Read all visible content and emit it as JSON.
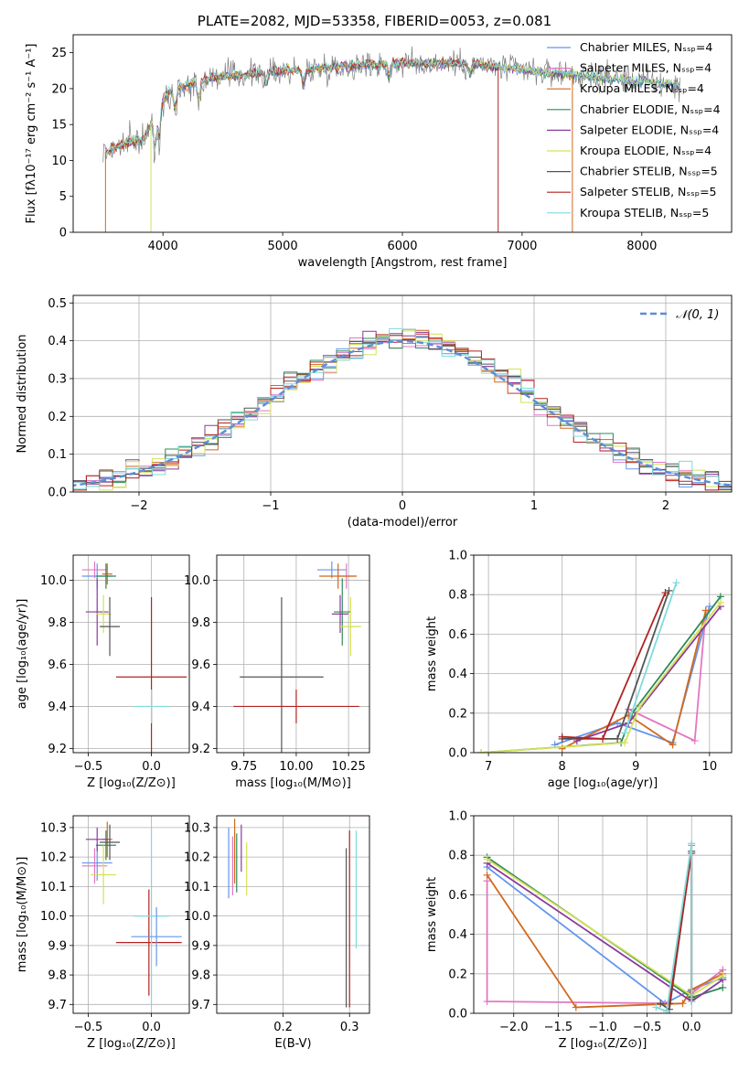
{
  "chart_data": [
    {
      "id": "spectrum",
      "type": "line",
      "title": "PLATE=2082, MJD=53358, FIBERID=0053, z=0.081",
      "xlabel": "wavelength [Angstrom, rest frame]",
      "ylabel": "Flux [fλ10⁻¹⁷ erg cm⁻² s⁻¹ A⁻¹]",
      "xlim": [
        3250,
        8750
      ],
      "ylim": [
        0,
        27.5
      ],
      "xticks": [
        4000,
        5000,
        6000,
        7000,
        8000
      ],
      "yticks": [
        0,
        5,
        10,
        15,
        20,
        25
      ],
      "grid": false,
      "legend_position": "right",
      "legend": [
        "Chabrier MILES, Nₛₛₚ=4",
        "Salpeter MILES, Nₛₛₚ=4",
        "Kroupa MILES, Nₛₛₚ=4",
        "Chabrier ELODIE, Nₛₛₚ=4",
        "Salpeter ELODIE, Nₛₛₚ=4",
        "Kroupa ELODIE, Nₛₛₚ=4",
        "Chabrier STELIB, Nₛₛₚ=5",
        "Salpeter STELIB, Nₛₛₚ=5",
        "Kroupa STELIB, Nₛₛₚ=5"
      ],
      "continuum": [
        [
          3500,
          11
        ],
        [
          3700,
          12.5
        ],
        [
          3850,
          13
        ],
        [
          3950,
          17.5
        ],
        [
          4050,
          19.5
        ],
        [
          4200,
          20.5
        ],
        [
          4400,
          21.5
        ],
        [
          4700,
          22
        ],
        [
          5000,
          22.5
        ],
        [
          5300,
          22.8
        ],
        [
          5600,
          23.2
        ],
        [
          5900,
          23.5
        ],
        [
          6200,
          23.5
        ],
        [
          6500,
          23.5
        ],
        [
          6800,
          23
        ],
        [
          7100,
          22.5
        ],
        [
          7400,
          22
        ],
        [
          7700,
          21.5
        ],
        [
          8000,
          21
        ],
        [
          8300,
          20.5
        ]
      ]
    },
    {
      "id": "residuals",
      "type": "histogram",
      "xlabel": "(data-model)/error",
      "ylabel": "Normed distribution",
      "xlim": [
        -2.5,
        2.5
      ],
      "ylim": [
        0,
        0.52
      ],
      "xticks": [
        -2,
        -1,
        0,
        1,
        2
      ],
      "yticks": [
        0.0,
        0.1,
        0.2,
        0.3,
        0.4,
        0.5
      ],
      "grid": true,
      "legend_position": "top-right",
      "legend": [
        "𝒩(0, 1)"
      ],
      "bin_width": 0.1,
      "bin_start": -2.5,
      "reference_mean": 0,
      "reference_sigma": 1
    },
    {
      "id": "age-vs-z",
      "type": "errorbar",
      "xlabel": "Z [log₁₀(Z/Z⊙)]",
      "ylabel": "age  [log₁₀(age/yr)]",
      "xlim": [
        -0.62,
        0.3
      ],
      "ylim": [
        9.18,
        10.12
      ],
      "xticks": [
        -0.5,
        0.0
      ],
      "yticks": [
        9.2,
        9.4,
        9.6,
        9.8,
        10.0
      ],
      "grid": true,
      "points": [
        {
          "x": -0.43,
          "y": 10.02,
          "xerr": 0.12,
          "yerr": 0.06
        },
        {
          "x": -0.45,
          "y": 10.05,
          "xerr": 0.1,
          "yerr": 0.04
        },
        {
          "x": -0.35,
          "y": 10.03,
          "xerr": 0.04,
          "yerr": 0.05
        },
        {
          "x": -0.36,
          "y": 10.02,
          "xerr": 0.08,
          "yerr": 0.06
        },
        {
          "x": -0.43,
          "y": 9.85,
          "xerr": 0.09,
          "yerr": 0.16
        },
        {
          "x": -0.38,
          "y": 9.84,
          "xerr": 0.06,
          "yerr": 0.09
        },
        {
          "x": -0.33,
          "y": 9.78,
          "xerr": 0.08,
          "yerr": 0.14
        },
        {
          "x": 0.0,
          "y": 9.54,
          "xerr": 0.28,
          "yerr": 0.38
        },
        {
          "x": 0.0,
          "y": 9.4,
          "xerr": 0.14,
          "yerr": 0.08
        }
      ]
    },
    {
      "id": "age-vs-mass",
      "type": "errorbar",
      "xlabel": "mass [log₁₀(M/M⊙)]",
      "ylabel": "",
      "xlim": [
        9.62,
        10.35
      ],
      "ylim": [
        9.18,
        10.12
      ],
      "xticks": [
        9.75,
        10.0,
        10.25
      ],
      "yticks": [
        9.2,
        9.4,
        9.6,
        9.8,
        10.0
      ],
      "grid": true,
      "points": [
        {
          "x": 10.17,
          "y": 10.05,
          "xerr": 0.07,
          "yerr": 0.04
        },
        {
          "x": 10.24,
          "y": 10.02,
          "xerr": 0.04,
          "yerr": 0.06
        },
        {
          "x": 10.2,
          "y": 10.02,
          "xerr": 0.09,
          "yerr": 0.06
        },
        {
          "x": 10.22,
          "y": 9.85,
          "xerr": 0.04,
          "yerr": 0.16
        },
        {
          "x": 10.21,
          "y": 9.84,
          "xerr": 0.04,
          "yerr": 0.09
        },
        {
          "x": 10.26,
          "y": 9.78,
          "xerr": 0.05,
          "yerr": 0.14
        },
        {
          "x": 9.93,
          "y": 9.54,
          "xerr": 0.2,
          "yerr": 0.38
        },
        {
          "x": 10.0,
          "y": 9.4,
          "xerr": 0.3,
          "yerr": 0.08
        }
      ]
    },
    {
      "id": "massweight-vs-age",
      "type": "line",
      "xlabel": "age  [log₁₀(age/yr)]",
      "ylabel": "mass weight",
      "xlim": [
        6.8,
        10.3
      ],
      "ylim": [
        0,
        1
      ],
      "xticks": [
        7,
        8,
        9,
        10
      ],
      "yticks": [
        0.0,
        0.2,
        0.4,
        0.6,
        0.8,
        1.0
      ],
      "grid": true,
      "series": [
        {
          "points": [
            [
              7.9,
              0.04
            ],
            [
              8.75,
              0.15
            ],
            [
              9.5,
              0.05
            ],
            [
              10.0,
              0.74
            ]
          ]
        },
        {
          "points": [
            [
              8.9,
              0.22
            ],
            [
              9.8,
              0.06
            ],
            [
              9.95,
              0.72
            ]
          ]
        },
        {
          "points": [
            [
              8.0,
              0.02
            ],
            [
              8.9,
              0.19
            ],
            [
              9.5,
              0.04
            ],
            [
              9.95,
              0.72
            ]
          ]
        },
        {
          "points": [
            [
              6.9,
              0.0
            ],
            [
              8.8,
              0.05
            ],
            [
              8.95,
              0.2
            ],
            [
              10.15,
              0.79
            ]
          ]
        },
        {
          "points": [
            [
              8.2,
              0.06
            ],
            [
              8.9,
              0.15
            ],
            [
              10.15,
              0.74
            ]
          ]
        },
        {
          "points": [
            [
              6.9,
              0.0
            ],
            [
              8.85,
              0.05
            ],
            [
              9.05,
              0.23
            ],
            [
              10.15,
              0.76
            ]
          ]
        },
        {
          "points": [
            [
              8.0,
              0.07
            ],
            [
              8.75,
              0.07
            ],
            [
              9.45,
              0.82
            ]
          ]
        },
        {
          "points": [
            [
              8.0,
              0.08
            ],
            [
              8.55,
              0.07
            ],
            [
              9.4,
              0.81
            ]
          ]
        },
        {
          "points": [
            [
              8.85,
              0.1
            ],
            [
              9.55,
              0.86
            ]
          ]
        }
      ]
    },
    {
      "id": "mass-vs-z",
      "type": "errorbar",
      "xlabel": "Z [log₁₀(Z/Z⊙)]",
      "ylabel": "mass [log₁₀(M/M⊙)]",
      "xlim": [
        -0.62,
        0.3
      ],
      "ylim": [
        9.67,
        10.34
      ],
      "xticks": [
        -0.5,
        0.0
      ],
      "yticks": [
        9.7,
        9.8,
        9.9,
        10.0,
        10.1,
        10.2,
        10.3
      ],
      "grid": true,
      "points": [
        {
          "x": -0.43,
          "y": 10.18,
          "xerr": 0.12,
          "yerr": 0.06
        },
        {
          "x": -0.45,
          "y": 10.17,
          "xerr": 0.1,
          "yerr": 0.06
        },
        {
          "x": -0.35,
          "y": 10.26,
          "xerr": 0.04,
          "yerr": 0.06
        },
        {
          "x": -0.36,
          "y": 10.24,
          "xerr": 0.08,
          "yerr": 0.05
        },
        {
          "x": -0.43,
          "y": 10.26,
          "xerr": 0.09,
          "yerr": 0.04
        },
        {
          "x": -0.38,
          "y": 10.14,
          "xerr": 0.1,
          "yerr": 0.1
        },
        {
          "x": -0.33,
          "y": 10.25,
          "xerr": 0.08,
          "yerr": 0.06
        },
        {
          "x": -0.02,
          "y": 9.91,
          "xerr": 0.26,
          "yerr": 0.18
        },
        {
          "x": 0.0,
          "y": 10.0,
          "xerr": 0.14,
          "yerr": 0.3
        },
        {
          "x": 0.04,
          "y": 9.93,
          "xerr": 0.2,
          "yerr": 0.1
        }
      ]
    },
    {
      "id": "mass-vs-ebv",
      "type": "errorbar",
      "xlabel": "E(B-V)",
      "ylabel": "",
      "xlim": [
        0.1,
        0.33
      ],
      "ylim": [
        9.67,
        10.34
      ],
      "xticks": [
        0.2,
        0.3
      ],
      "yticks": [
        9.7,
        9.8,
        9.9,
        10.0,
        10.1,
        10.2,
        10.3
      ],
      "grid": true,
      "points": [
        {
          "x": 0.118,
          "y": 10.18,
          "xerr": 0,
          "yerr": 0.12
        },
        {
          "x": 0.124,
          "y": 10.17,
          "xerr": 0,
          "yerr": 0.1
        },
        {
          "x": 0.127,
          "y": 10.22,
          "xerr": 0,
          "yerr": 0.11
        },
        {
          "x": 0.13,
          "y": 10.18,
          "xerr": 0,
          "yerr": 0.1
        },
        {
          "x": 0.137,
          "y": 10.23,
          "xerr": 0,
          "yerr": 0.08
        },
        {
          "x": 0.145,
          "y": 10.16,
          "xerr": 0,
          "yerr": 0.09
        },
        {
          "x": 0.295,
          "y": 9.96,
          "xerr": 0,
          "yerr": 0.27
        },
        {
          "x": 0.3,
          "y": 9.99,
          "xerr": 0,
          "yerr": 0.3
        },
        {
          "x": 0.31,
          "y": 10.09,
          "xerr": 0,
          "yerr": 0.2
        }
      ]
    },
    {
      "id": "massweight-vs-z",
      "type": "line",
      "xlabel": "Z [log₁₀(Z/Z⊙)]",
      "ylabel": "mass weight",
      "xlim": [
        -2.45,
        0.45
      ],
      "ylim": [
        0,
        1
      ],
      "xticks": [
        -2.0,
        -1.5,
        -1.0,
        -0.5,
        0.0
      ],
      "yticks": [
        0.0,
        0.2,
        0.4,
        0.6,
        0.8,
        1.0
      ],
      "grid": true,
      "series": [
        {
          "points": [
            [
              -2.3,
              0.74
            ],
            [
              -0.3,
              0.05
            ],
            [
              0.0,
              0.12
            ],
            [
              0.35,
              0.18
            ]
          ]
        },
        {
          "points": [
            [
              -2.3,
              0.67
            ],
            [
              -2.3,
              0.06
            ],
            [
              -0.25,
              0.05
            ],
            [
              0.0,
              0.85
            ],
            [
              0.0,
              0.1
            ],
            [
              0.35,
              0.22
            ]
          ]
        },
        {
          "points": [
            [
              -2.3,
              0.7
            ],
            [
              -1.3,
              0.03
            ],
            [
              -0.1,
              0.05
            ],
            [
              0.0,
              0.12
            ],
            [
              0.35,
              0.2
            ]
          ]
        },
        {
          "points": [
            [
              -2.3,
              0.79
            ],
            [
              0.0,
              0.08
            ],
            [
              0.35,
              0.13
            ]
          ]
        },
        {
          "points": [
            [
              -2.3,
              0.76
            ],
            [
              0.0,
              0.06
            ],
            [
              0.35,
              0.17
            ]
          ]
        },
        {
          "points": [
            [
              -2.3,
              0.78
            ],
            [
              0.0,
              0.09
            ],
            [
              0.35,
              0.19
            ]
          ]
        },
        {
          "points": [
            [
              -0.35,
              0.05
            ],
            [
              -0.25,
              0.02
            ],
            [
              0.0,
              0.82
            ],
            [
              0.0,
              0.08
            ]
          ]
        },
        {
          "points": [
            [
              -0.25,
              0.05
            ],
            [
              0.0,
              0.81
            ],
            [
              0.0,
              0.07
            ]
          ]
        },
        {
          "points": [
            [
              -0.4,
              0.03
            ],
            [
              -0.28,
              0.01
            ],
            [
              0.0,
              0.86
            ],
            [
              0.0,
              0.06
            ]
          ]
        }
      ]
    }
  ],
  "colors": {
    "series": [
      "#6495ed",
      "#e377c2",
      "#d2691e",
      "#2e8b57",
      "#8b3a9e",
      "#d4e157",
      "#555555",
      "#b22222",
      "#7fdbdb"
    ],
    "gaussian": "#5b8ed6",
    "grid": "#b0b0b0"
  }
}
